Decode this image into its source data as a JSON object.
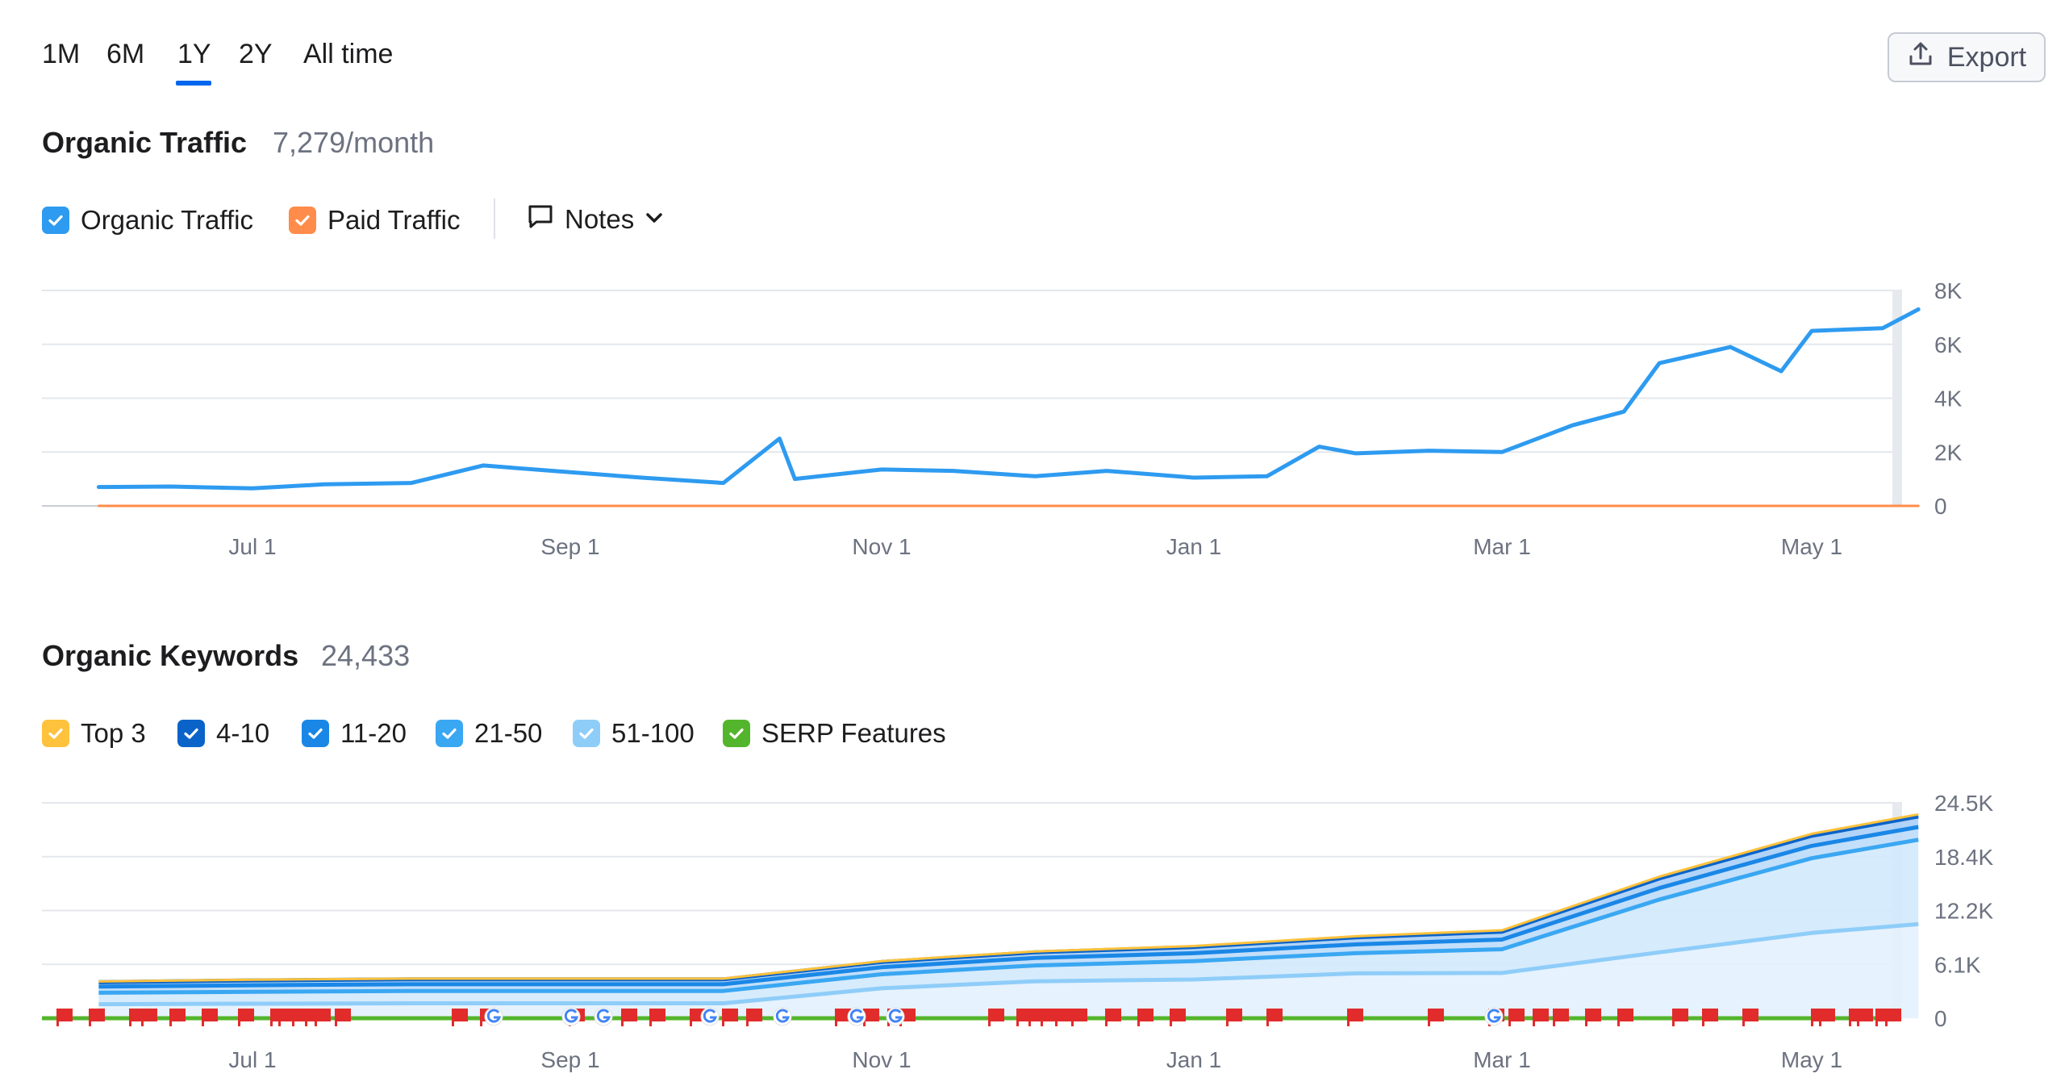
{
  "tabs": [
    {
      "label": "1M",
      "active": false
    },
    {
      "label": "6M",
      "active": false
    },
    {
      "label": "1Y",
      "active": true
    },
    {
      "label": "2Y",
      "active": false
    },
    {
      "label": "All time",
      "active": false
    }
  ],
  "export": {
    "label": "Export",
    "icon": "export-icon"
  },
  "traffic": {
    "title": "Organic Traffic",
    "value": "7,279/month",
    "legend": [
      {
        "label": "Organic Traffic",
        "color": "#2e9bf0",
        "checked": true
      },
      {
        "label": "Paid Traffic",
        "color": "#ff8c4a",
        "checked": true
      }
    ],
    "notes_label": "Notes"
  },
  "keywords": {
    "title": "Organic Keywords",
    "value": "24,433",
    "legend": [
      {
        "label": "Top 3",
        "color": "#ffc23c",
        "checked": true
      },
      {
        "label": "4-10",
        "color": "#0a63c9",
        "checked": true
      },
      {
        "label": "11-20",
        "color": "#1a87e6",
        "checked": true
      },
      {
        "label": "21-50",
        "color": "#3aa7f2",
        "checked": true
      },
      {
        "label": "51-100",
        "color": "#8fcdf9",
        "checked": true
      },
      {
        "label": "SERP Features",
        "color": "#53b52b",
        "checked": true
      }
    ]
  },
  "chart_data": [
    {
      "type": "line",
      "title": "Organic Traffic",
      "x_tick_labels": [
        "Jul 1",
        "Sep 1",
        "Nov 1",
        "Jan 1",
        "Mar 1",
        "May 1"
      ],
      "y_tick_labels": [
        "0",
        "2K",
        "4K",
        "6K",
        "8K"
      ],
      "ylim": [
        0,
        8000
      ],
      "grid": true,
      "series": [
        {
          "name": "Organic Traffic",
          "color": "#2e9bf0",
          "x": [
            "Jun 1",
            "Jun 15",
            "Jul 1",
            "Jul 15",
            "Aug 1",
            "Aug 15",
            "Sep 1",
            "Sep 15",
            "Oct 1",
            "Oct 12",
            "Oct 15",
            "Nov 1",
            "Nov 15",
            "Dec 1",
            "Dec 15",
            "Jan 1",
            "Jan 15",
            "Jan 25",
            "Feb 1",
            "Feb 15",
            "Mar 1",
            "Mar 15",
            "Mar 25",
            "Apr 1",
            "Apr 15",
            "Apr 25",
            "May 1",
            "May 15",
            "May 22"
          ],
          "values": [
            700,
            720,
            650,
            800,
            850,
            1500,
            1250,
            1050,
            850,
            2500,
            1000,
            1350,
            1300,
            1100,
            1300,
            1050,
            1100,
            2200,
            1950,
            2050,
            2000,
            3000,
            3500,
            5300,
            5900,
            5000,
            6500,
            6600,
            7300
          ]
        },
        {
          "name": "Paid Traffic",
          "color": "#ff8c4a",
          "x": [
            "Jun 1",
            "May 22"
          ],
          "values": [
            0,
            0
          ]
        }
      ]
    },
    {
      "type": "area",
      "title": "Organic Keywords",
      "x_tick_labels": [
        "Jul 1",
        "Sep 1",
        "Nov 1",
        "Jan 1",
        "Mar 1",
        "May 1"
      ],
      "y_tick_labels": [
        "0",
        "6.1K",
        "12.2K",
        "18.4K",
        "24.5K"
      ],
      "ylim": [
        0,
        24500
      ],
      "grid": true,
      "x": [
        "Jun 1",
        "Jul 1",
        "Aug 1",
        "Sep 1",
        "Oct 1",
        "Nov 1",
        "Dec 1",
        "Jan 1",
        "Feb 1",
        "Mar 1",
        "Apr 1",
        "May 1",
        "May 22"
      ],
      "series": [
        {
          "name": "Top 3",
          "color": "#ffc23c",
          "values": [
            80,
            90,
            90,
            90,
            90,
            100,
            100,
            110,
            120,
            150,
            200,
            230,
            240
          ]
        },
        {
          "name": "4-10",
          "color": "#0a63c9",
          "values": [
            500,
            550,
            560,
            560,
            560,
            600,
            650,
            700,
            800,
            900,
            1100,
            1150,
            1200
          ]
        },
        {
          "name": "11-20",
          "color": "#1a87e6",
          "values": [
            700,
            750,
            760,
            760,
            760,
            800,
            850,
            900,
            1000,
            1100,
            1300,
            1400,
            1450
          ]
        },
        {
          "name": "21-50",
          "color": "#3aa7f2",
          "values": [
            1300,
            1350,
            1400,
            1400,
            1400,
            1600,
            1800,
            2100,
            2300,
            2700,
            6000,
            8500,
            9600
          ]
        },
        {
          "name": "51-100",
          "color": "#8fcdf9",
          "values": [
            1600,
            1650,
            1700,
            1700,
            1700,
            3400,
            4200,
            4400,
            5100,
            5150,
            7500,
            9700,
            10700
          ]
        }
      ],
      "serp_features": {
        "name": "SERP Features",
        "color": "#53b52b",
        "value": 0
      }
    }
  ]
}
